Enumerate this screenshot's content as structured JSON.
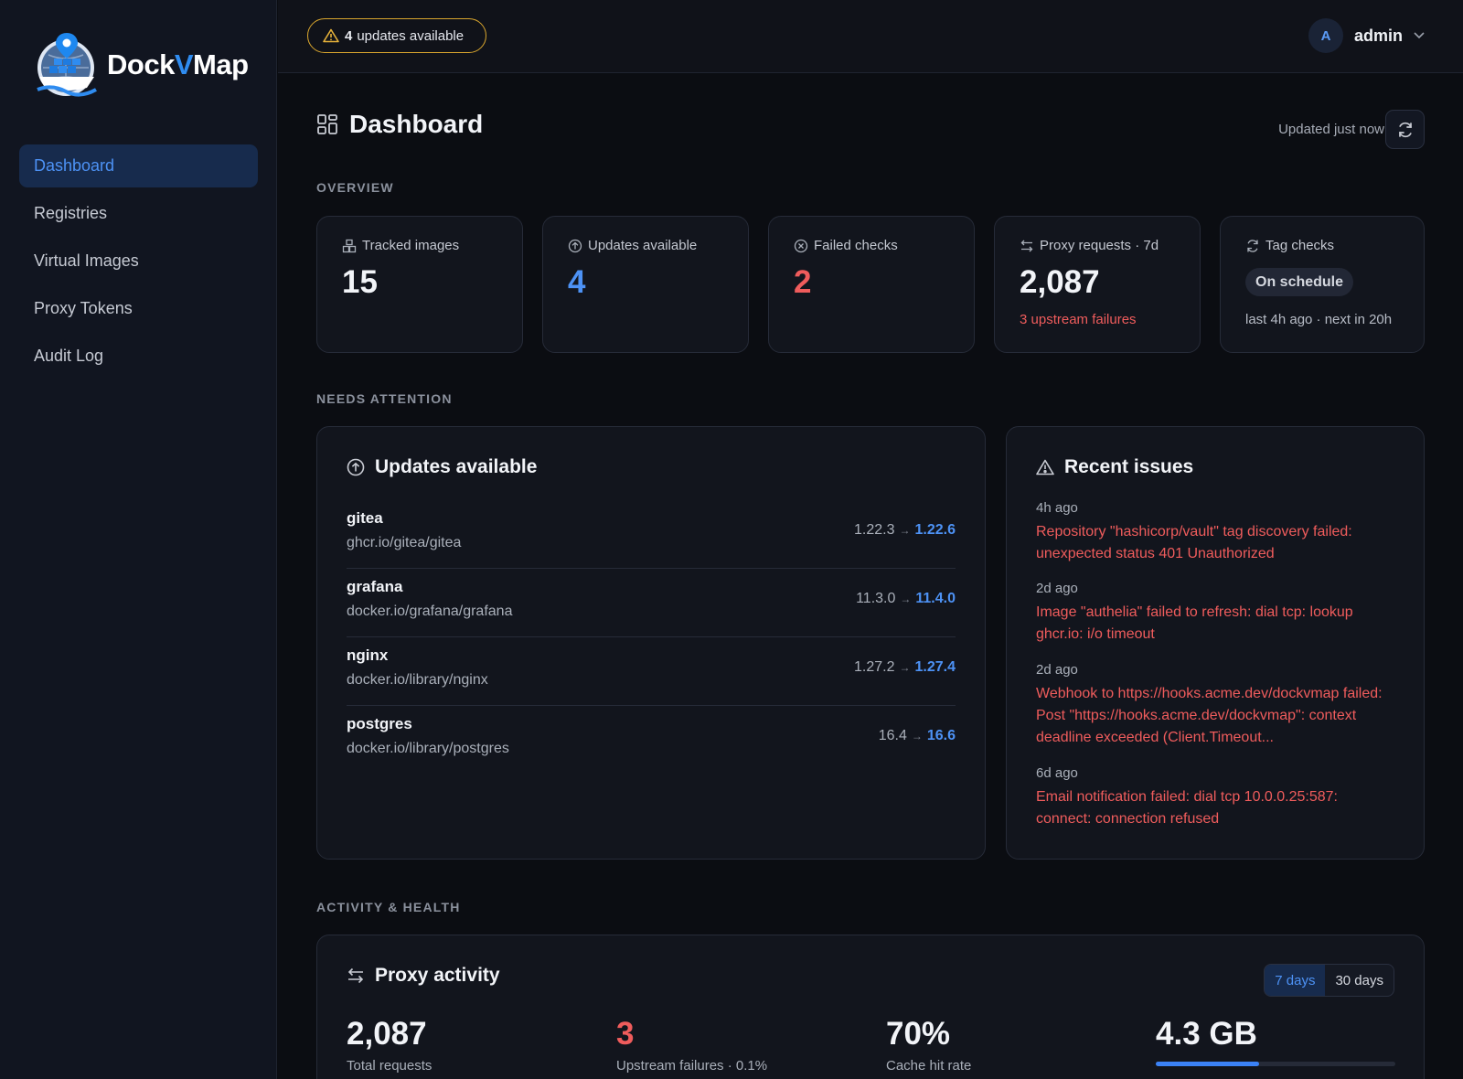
{
  "app": {
    "name_prefix": "Dock",
    "name_v": "V",
    "name_suffix": "Map"
  },
  "sidebar": {
    "items": [
      {
        "label": "Dashboard",
        "active": true
      },
      {
        "label": "Registries"
      },
      {
        "label": "Virtual Images"
      },
      {
        "label": "Proxy Tokens"
      },
      {
        "label": "Audit Log"
      }
    ]
  },
  "topbar": {
    "updates_count": "4",
    "updates_text": "updates available",
    "avatar_letter": "A",
    "username": "admin"
  },
  "page": {
    "title": "Dashboard",
    "updated_text": "Updated just now"
  },
  "sections": {
    "overview": "OVERVIEW",
    "needs_attention": "NEEDS ATTENTION",
    "activity": "ACTIVITY & HEALTH"
  },
  "stats": {
    "tracked": {
      "label": "Tracked images",
      "value": "15"
    },
    "updates": {
      "label": "Updates available",
      "value": "4"
    },
    "failed": {
      "label": "Failed checks",
      "value": "2"
    },
    "proxy": {
      "label": "Proxy requests · 7d",
      "value": "2,087",
      "sub": "3 upstream failures"
    },
    "tags": {
      "label": "Tag checks",
      "badge": "On schedule",
      "sub": "last 4h ago · next in 20h"
    }
  },
  "updates_panel": {
    "title": "Updates available",
    "rows": [
      {
        "name": "gitea",
        "repo": "ghcr.io/gitea/gitea",
        "from": "1.22.3",
        "to": "1.22.6"
      },
      {
        "name": "grafana",
        "repo": "docker.io/grafana/grafana",
        "from": "11.3.0",
        "to": "11.4.0"
      },
      {
        "name": "nginx",
        "repo": "docker.io/library/nginx",
        "from": "1.27.2",
        "to": "1.27.4"
      },
      {
        "name": "postgres",
        "repo": "docker.io/library/postgres",
        "from": "16.4",
        "to": "16.6"
      }
    ],
    "arrow": "→"
  },
  "issues_panel": {
    "title": "Recent issues",
    "items": [
      {
        "time": "4h ago",
        "text": "Repository \"hashicorp/vault\" tag discovery failed: unexpected status 401 Unauthorized"
      },
      {
        "time": "2d ago",
        "text": "Image \"authelia\" failed to refresh: dial tcp: lookup ghcr.io: i/o timeout"
      },
      {
        "time": "2d ago",
        "text": "Webhook to https://hooks.acme.dev/dockvmap failed: Post \"https://hooks.acme.dev/dockvmap\": context deadline exceeded (Client.Timeout..."
      },
      {
        "time": "6d ago",
        "text": "Email notification failed: dial tcp 10.0.0.25:587: connect: connection refused"
      }
    ]
  },
  "activity_panel": {
    "title": "Proxy activity",
    "range_options": [
      "7 days",
      "30 days"
    ],
    "selected_range": "7 days",
    "metrics": {
      "total": {
        "value": "2,087",
        "label": "Total requests"
      },
      "failures": {
        "value": "3",
        "label": "Upstream failures · 0.1%"
      },
      "cache": {
        "value": "70%",
        "label": "Cache hit rate"
      },
      "transfer": {
        "value": "4.3 GB",
        "progress_percent": 43
      }
    }
  },
  "colors": {
    "accent": "#4d92f5",
    "danger": "#ef5c5c",
    "warning": "#d9a62e"
  }
}
